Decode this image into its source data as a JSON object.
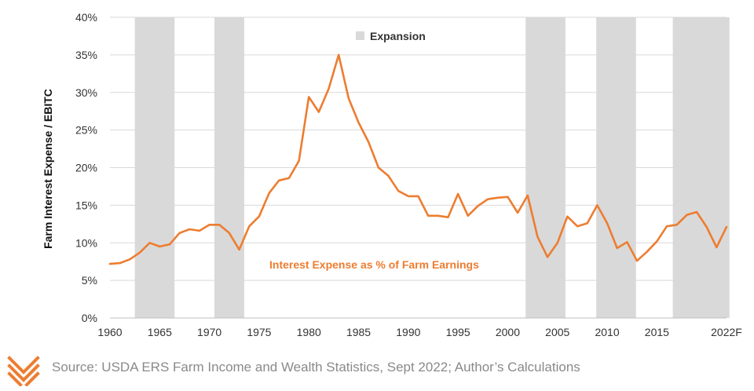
{
  "chart_data": {
    "type": "line",
    "title": "",
    "ylabel": "Farm Interest Expense / EBITC",
    "xlabel": "",
    "ylim": [
      0,
      40
    ],
    "xlim": [
      1960,
      2022
    ],
    "yticks": [
      0,
      5,
      10,
      15,
      20,
      25,
      30,
      35,
      40
    ],
    "ytick_labels": [
      "0%",
      "5%",
      "10%",
      "15%",
      "20%",
      "25%",
      "30%",
      "35%",
      "40%"
    ],
    "xticks": [
      1960,
      1965,
      1970,
      1975,
      1980,
      1985,
      1990,
      1995,
      2000,
      2005,
      2010,
      2015,
      2022
    ],
    "xtick_labels": [
      "1960",
      "1965",
      "1970",
      "1975",
      "1980",
      "1985",
      "1990",
      "1995",
      "2000",
      "2005",
      "2010",
      "2015",
      "2022F"
    ],
    "grid": "horizontal",
    "legend": {
      "position": "top-center",
      "entries": [
        {
          "label": "Expansion",
          "color": "#d9d9d9"
        }
      ]
    },
    "annotation": {
      "text": "Interest Expense as % of Farm Earnings",
      "color": "#ed7d31"
    },
    "shaded_periods": [
      [
        1962.5,
        1966.5
      ],
      [
        1970.5,
        1973.5
      ],
      [
        2001.8,
        2005.8
      ],
      [
        2008.9,
        2012.9
      ],
      [
        2016.6,
        2022.3
      ]
    ],
    "series": [
      {
        "color": "#ed7d31",
        "x": [
          1960,
          1961,
          1962,
          1963,
          1964,
          1965,
          1966,
          1967,
          1968,
          1969,
          1970,
          1971,
          1972,
          1973,
          1974,
          1975,
          1976,
          1977,
          1978,
          1979,
          1980,
          1981,
          1982,
          1983,
          1984,
          1985,
          1986,
          1987,
          1988,
          1989,
          1990,
          1991,
          1992,
          1993,
          1994,
          1995,
          1996,
          1997,
          1998,
          1999,
          2000,
          2001,
          2002,
          2003,
          2004,
          2005,
          2006,
          2007,
          2008,
          2009,
          2010,
          2011,
          2012,
          2013,
          2014,
          2015,
          2016,
          2017,
          2018,
          2019,
          2020,
          2021,
          2022
        ],
        "values": [
          7.2,
          7.3,
          7.8,
          8.7,
          10.0,
          9.5,
          9.8,
          11.3,
          11.8,
          11.6,
          12.4,
          12.4,
          11.3,
          9.1,
          12.2,
          13.5,
          16.6,
          18.3,
          18.6,
          20.9,
          29.4,
          27.4,
          30.5,
          35.0,
          29.2,
          26.0,
          23.4,
          20.0,
          18.9,
          16.9,
          16.2,
          16.2,
          13.6,
          13.6,
          13.4,
          16.5,
          13.6,
          14.9,
          15.8,
          16.0,
          16.1,
          14.0,
          16.3,
          10.8,
          8.1,
          10.0,
          13.5,
          12.2,
          12.6,
          15.0,
          12.6,
          9.3,
          10.1,
          7.6,
          8.8,
          10.2,
          12.2,
          12.4,
          13.7,
          14.1,
          12.1,
          9.4,
          12.1
        ]
      }
    ]
  },
  "footer": {
    "source": "Source: USDA ERS Farm Income and Wealth Statistics, Sept 2022; Author’s Calculations",
    "logo_color": "#ed7d31"
  }
}
